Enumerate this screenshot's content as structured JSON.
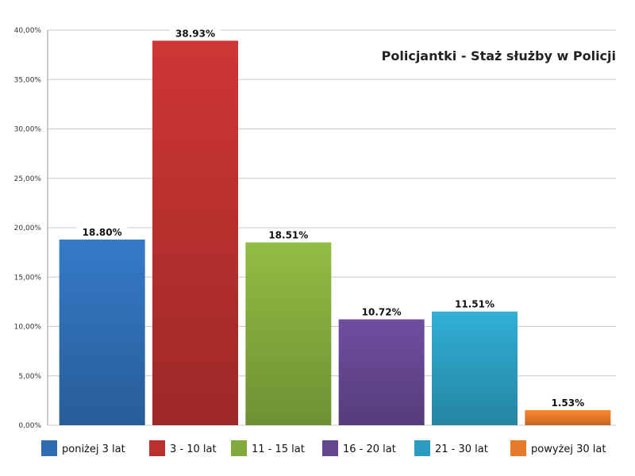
{
  "chart_data": {
    "type": "bar",
    "title": "Policjantki - Staż służby w Policji",
    "categories": [
      "poniżej 3 lat",
      "3 - 10 lat",
      "11 - 15 lat",
      "16 - 20 lat",
      "21 - 30 lat",
      "powyżej 30 lat"
    ],
    "values": [
      18.8,
      38.93,
      18.51,
      10.72,
      11.51,
      1.53
    ],
    "value_labels": [
      "18.80%",
      "38.93%",
      "18.51%",
      "10.72%",
      "11.51%",
      "1.53%"
    ],
    "colors": [
      "#2f6db3",
      "#b9302e",
      "#82a93c",
      "#64468f",
      "#2b9cbf",
      "#e6792a"
    ],
    "yticks": [
      0,
      5,
      10,
      15,
      20,
      25,
      30,
      35,
      40
    ],
    "ytick_labels": [
      "0,00%",
      "5,00%",
      "10,00%",
      "15,00%",
      "20,00%",
      "25,00%",
      "30,00%",
      "35,00%",
      "40,00%"
    ],
    "ylim": [
      0,
      40
    ],
    "grid": true,
    "legend_position": "bottom"
  }
}
